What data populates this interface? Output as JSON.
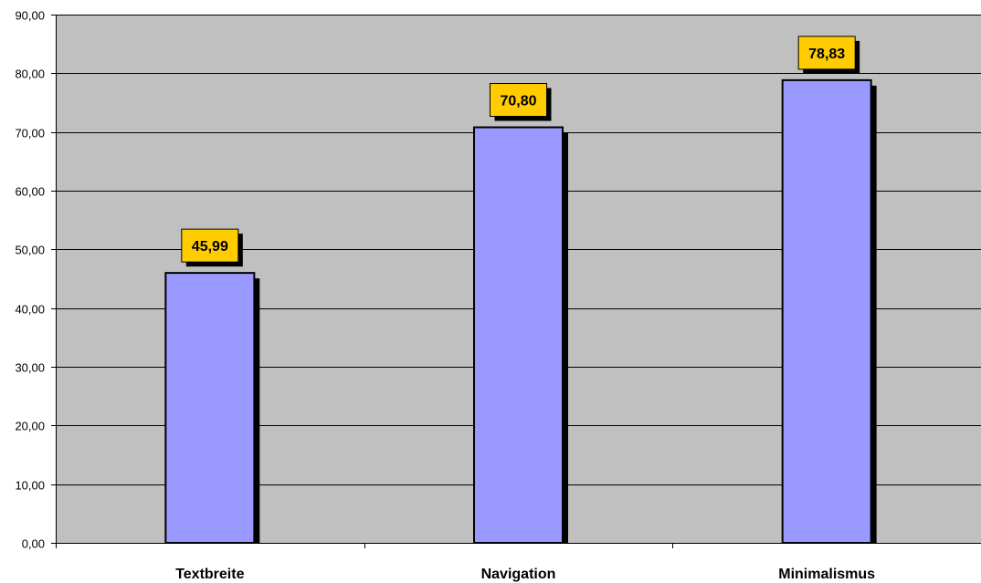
{
  "chart_data": {
    "type": "bar",
    "categories": [
      "Textbreite",
      "Navigation",
      "Minimalismus"
    ],
    "values": [
      45.99,
      70.8,
      78.83
    ],
    "value_labels": [
      "45,99",
      "70,80",
      "78,83"
    ],
    "ylim": [
      0,
      90
    ],
    "yticks": [
      "0,00",
      "10,00",
      "20,00",
      "30,00",
      "40,00",
      "50,00",
      "60,00",
      "70,00",
      "80,00",
      "90,00"
    ],
    "grid": true,
    "legend": "none",
    "colors": {
      "plot_background": "#c0c0c0",
      "bar_fill": "#9999ff",
      "bar_shadow": "#000000",
      "label_fill": "#ffcc00",
      "gridline": "#000000"
    }
  }
}
